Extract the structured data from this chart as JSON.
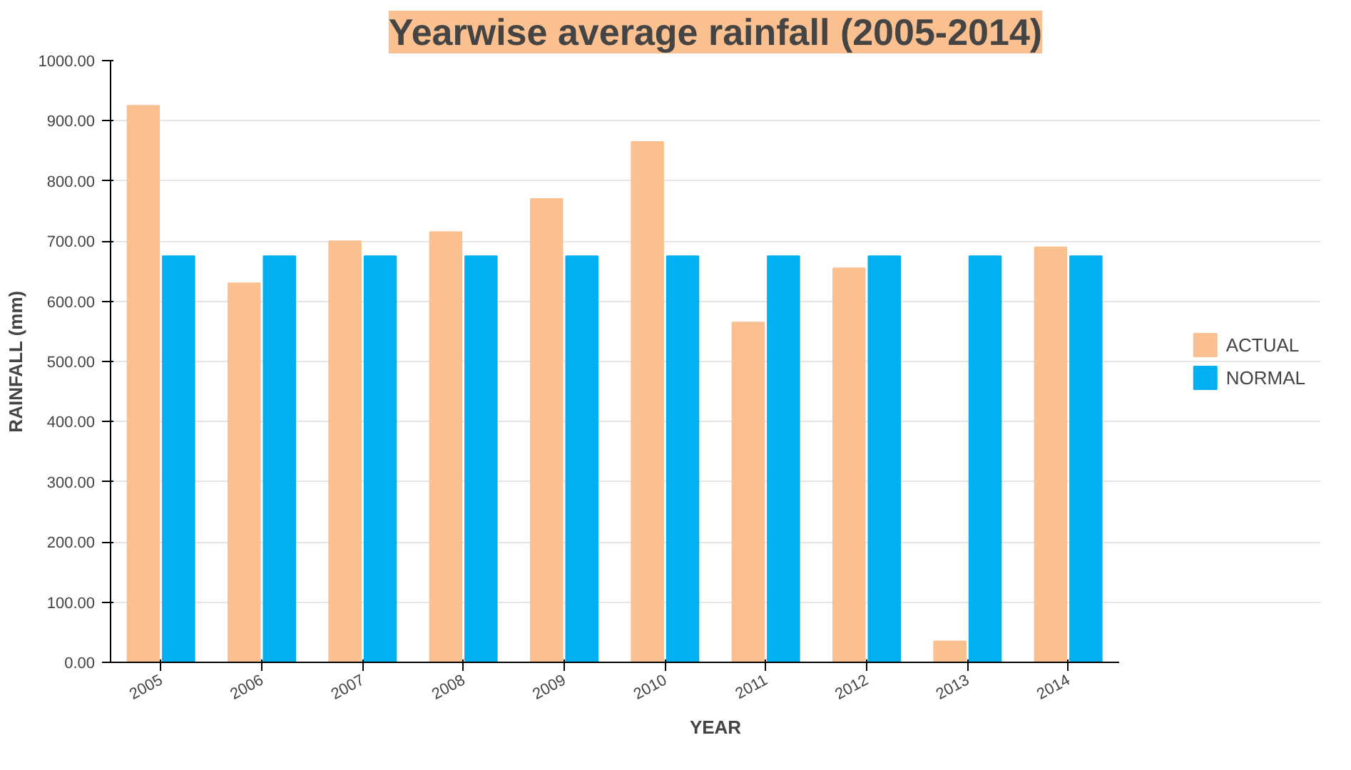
{
  "chart_data": {
    "type": "bar",
    "title": "Yearwise average rainfall (2005-2014)",
    "xlabel": "YEAR",
    "ylabel": "RAINFALL (mm)",
    "categories": [
      "2005",
      "2006",
      "2007",
      "2008",
      "2009",
      "2010",
      "2011",
      "2012",
      "2013",
      "2014"
    ],
    "series": [
      {
        "name": "ACTUAL",
        "color": "#fac090",
        "values": [
          925,
          630,
          700,
          715,
          770,
          865,
          565,
          655,
          35,
          690
        ]
      },
      {
        "name": "NORMAL",
        "color": "#00b0f0",
        "values": [
          675,
          675,
          675,
          675,
          675,
          675,
          675,
          675,
          675,
          675
        ]
      }
    ],
    "ylim": [
      0,
      1000
    ],
    "yticks": [
      {
        "value": 0,
        "label": "0.00"
      },
      {
        "value": 100,
        "label": "100.00"
      },
      {
        "value": 200,
        "label": "200.00"
      },
      {
        "value": 300,
        "label": "300.00"
      },
      {
        "value": 400,
        "label": "400.00"
      },
      {
        "value": 500,
        "label": "500.00"
      },
      {
        "value": 600,
        "label": "600.00"
      },
      {
        "value": 700,
        "label": "700.00"
      },
      {
        "value": 800,
        "label": "800.00"
      },
      {
        "value": 900,
        "label": "900.00"
      },
      {
        "value": 1000,
        "label": "1000.00"
      }
    ],
    "grid": "y",
    "legend": "right"
  }
}
